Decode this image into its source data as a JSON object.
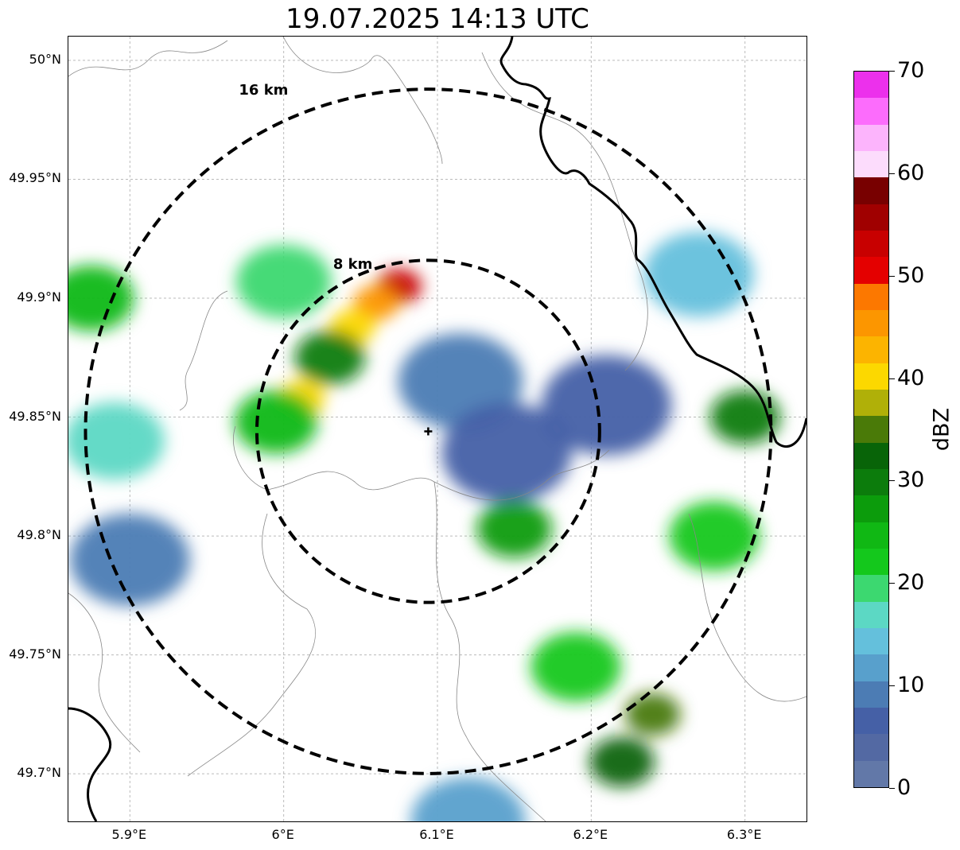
{
  "title": "19.07.2025 14:13 UTC",
  "map": {
    "lon_range": [
      5.86,
      6.34
    ],
    "lat_range": [
      49.68,
      50.01
    ],
    "lat_ticks": [
      {
        "value": 50.0,
        "label": "50°N"
      },
      {
        "value": 49.95,
        "label": "49.95°N"
      },
      {
        "value": 49.9,
        "label": "49.9°N"
      },
      {
        "value": 49.85,
        "label": "49.85°N"
      },
      {
        "value": 49.8,
        "label": "49.8°N"
      },
      {
        "value": 49.75,
        "label": "49.75°N"
      },
      {
        "value": 49.7,
        "label": "49.7°N"
      }
    ],
    "lon_ticks": [
      {
        "value": 5.9,
        "label": "5.9°E"
      },
      {
        "value": 6.0,
        "label": "6°E"
      },
      {
        "value": 6.1,
        "label": "6.1°E"
      },
      {
        "value": 6.2,
        "label": "6.2°E"
      },
      {
        "value": 6.3,
        "label": "6.3°E"
      }
    ],
    "radar_site": {
      "lon": 6.094,
      "lat": 49.844
    },
    "range_rings": [
      {
        "radius_km": 8,
        "label": "8 km"
      },
      {
        "radius_km": 16,
        "label": "16 km"
      }
    ],
    "grid": true
  },
  "echoes": [
    {
      "lon": 6.075,
      "lat": 49.905,
      "dbz": 52
    },
    {
      "lon": 6.06,
      "lat": 49.898,
      "dbz": 46
    },
    {
      "lon": 6.045,
      "lat": 49.888,
      "dbz": 40
    },
    {
      "lon": 6.03,
      "lat": 49.875,
      "dbz": 30
    },
    {
      "lon": 6.012,
      "lat": 49.858,
      "dbz": 40
    },
    {
      "lon": 5.995,
      "lat": 49.848,
      "dbz": 25
    },
    {
      "lon": 6.0,
      "lat": 49.907,
      "dbz": 20
    },
    {
      "lon": 6.115,
      "lat": 49.865,
      "dbz": 8
    },
    {
      "lon": 6.145,
      "lat": 49.835,
      "dbz": 6
    },
    {
      "lon": 6.15,
      "lat": 49.803,
      "dbz": 28
    },
    {
      "lon": 6.24,
      "lat": 49.725,
      "dbz": 36
    },
    {
      "lon": 6.22,
      "lat": 49.705,
      "dbz": 32
    },
    {
      "lon": 6.19,
      "lat": 49.745,
      "dbz": 22
    },
    {
      "lon": 6.3,
      "lat": 49.85,
      "dbz": 30
    },
    {
      "lon": 6.28,
      "lat": 49.8,
      "dbz": 22
    },
    {
      "lon": 6.27,
      "lat": 49.91,
      "dbz": 14
    },
    {
      "lon": 6.21,
      "lat": 49.855,
      "dbz": 6
    },
    {
      "lon": 5.875,
      "lat": 49.9,
      "dbz": 24
    },
    {
      "lon": 5.89,
      "lat": 49.84,
      "dbz": 18
    },
    {
      "lon": 5.9,
      "lat": 49.79,
      "dbz": 10
    },
    {
      "lon": 6.12,
      "lat": 49.68,
      "dbz": 12
    }
  ],
  "colorbar": {
    "label": "dBZ",
    "min": 0,
    "max": 70,
    "ticks": [
      "0",
      "10",
      "20",
      "30",
      "40",
      "50",
      "60",
      "70"
    ],
    "colors": [
      "#6278a8",
      "#5369a3",
      "#4560a6",
      "#4c7cb4",
      "#58a0cc",
      "#64c0dc",
      "#5cd8c4",
      "#3cd870",
      "#14c81c",
      "#10b814",
      "#0c9c0c",
      "#0c7c0c",
      "#086408",
      "#4a7a08",
      "#b0b008",
      "#fcd800",
      "#fcb400",
      "#fc9600",
      "#fc7800",
      "#e40000",
      "#c80000",
      "#a00000",
      "#780000",
      "#fcdcfc",
      "#fcb4fc",
      "#fc6cfc",
      "#ec30ec"
    ]
  }
}
